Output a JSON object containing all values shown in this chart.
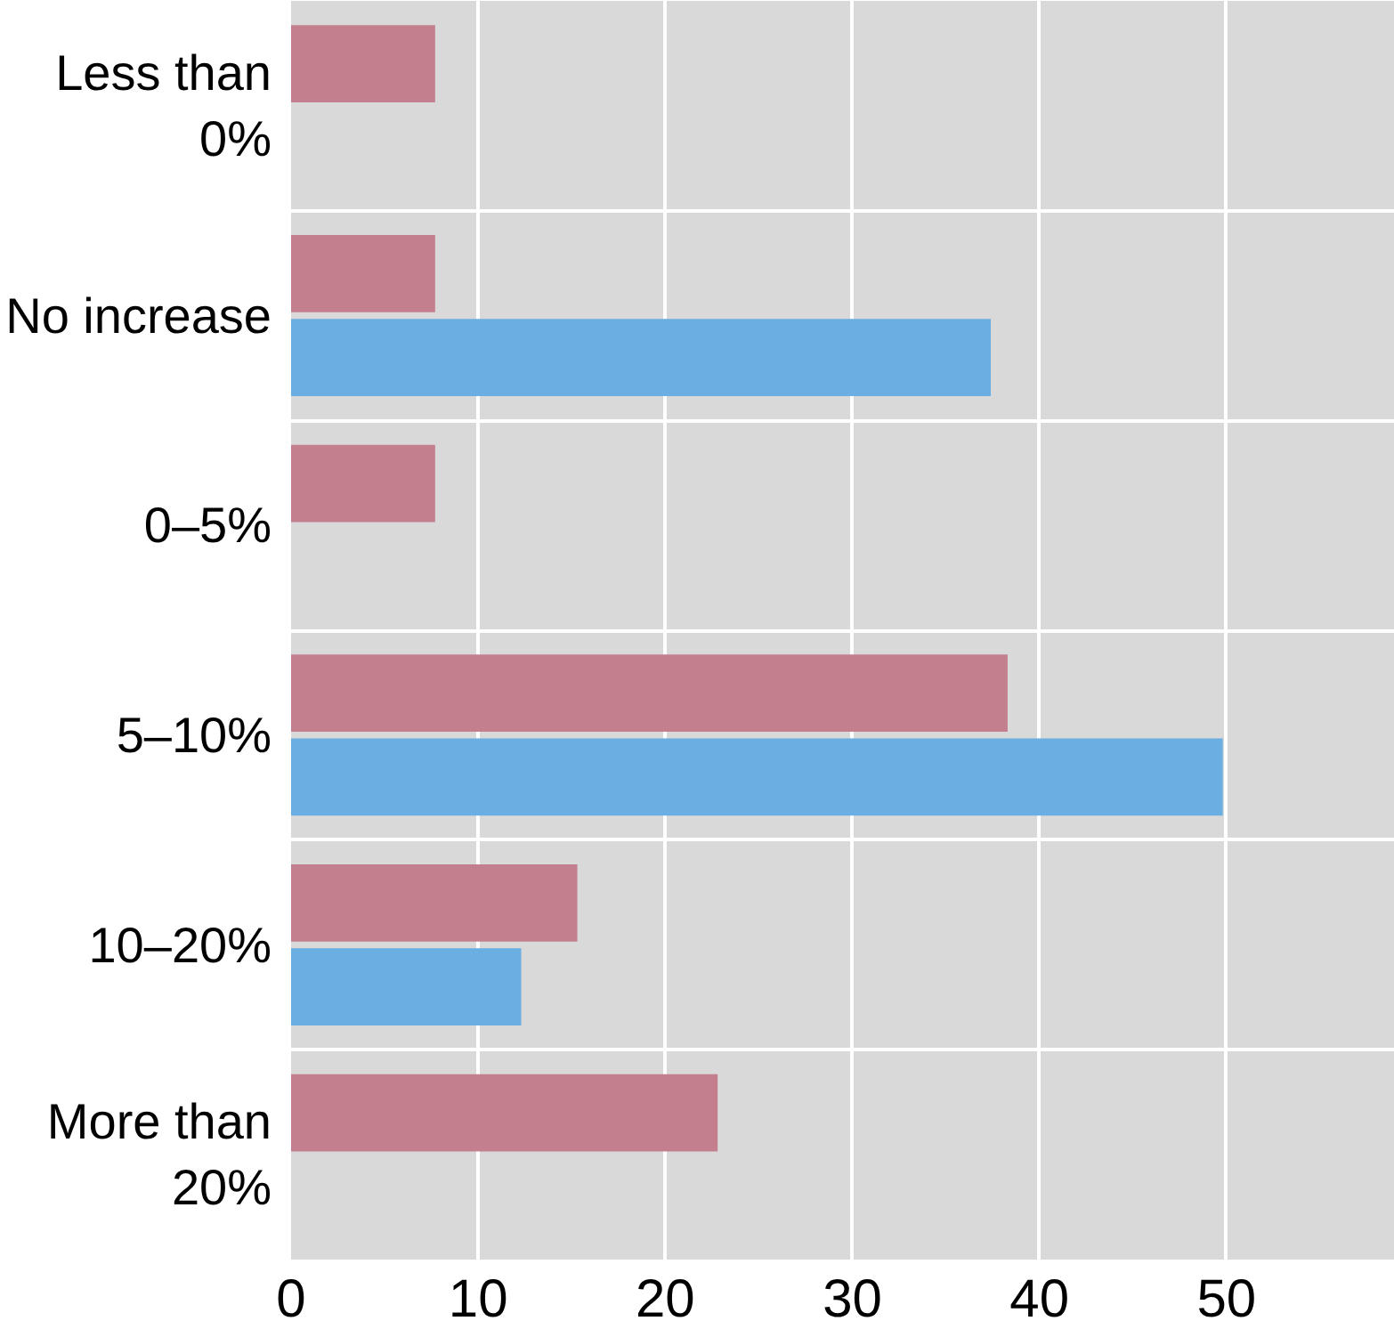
{
  "chart_data": {
    "type": "bar",
    "orientation": "horizontal",
    "categories": [
      "Less than 0%",
      "No increase",
      "0–5%",
      "5–10%",
      "10–20%",
      "More than 20%"
    ],
    "series": [
      {
        "color": "#c47f8e",
        "values": [
          7.7,
          7.7,
          7.7,
          38.3,
          15.3,
          22.8
        ]
      },
      {
        "color": "#6aaee2",
        "values": [
          null,
          37.4,
          null,
          49.8,
          12.3,
          null
        ]
      }
    ],
    "xlim": [
      0,
      59
    ],
    "xticks": [
      0,
      10,
      20,
      30,
      40,
      50
    ],
    "grid": true
  }
}
